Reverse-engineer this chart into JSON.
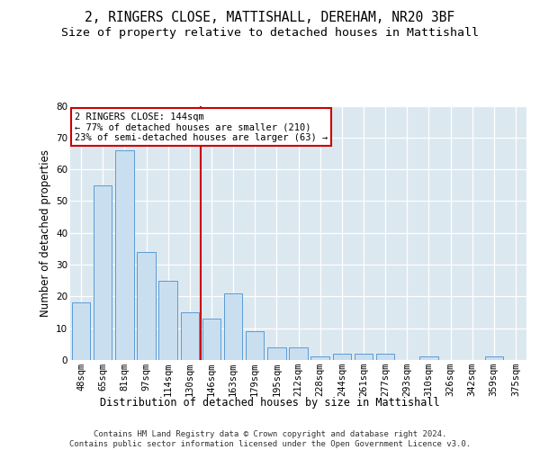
{
  "title": "2, RINGERS CLOSE, MATTISHALL, DEREHAM, NR20 3BF",
  "subtitle": "Size of property relative to detached houses in Mattishall",
  "xlabel": "Distribution of detached houses by size in Mattishall",
  "ylabel": "Number of detached properties",
  "categories": [
    "48sqm",
    "65sqm",
    "81sqm",
    "97sqm",
    "114sqm",
    "130sqm",
    "146sqm",
    "163sqm",
    "179sqm",
    "195sqm",
    "212sqm",
    "228sqm",
    "244sqm",
    "261sqm",
    "277sqm",
    "293sqm",
    "310sqm",
    "326sqm",
    "342sqm",
    "359sqm",
    "375sqm"
  ],
  "values": [
    18,
    55,
    66,
    34,
    25,
    15,
    13,
    21,
    9,
    4,
    4,
    1,
    2,
    2,
    2,
    0,
    1,
    0,
    0,
    1,
    0
  ],
  "bar_color": "#c9dff0",
  "bar_edge_color": "#5b9bd5",
  "vline_color": "#cc0000",
  "vline_x": 5.5,
  "annotation_line1": "2 RINGERS CLOSE: 144sqm",
  "annotation_line2": "← 77% of detached houses are smaller (210)",
  "annotation_line3": "23% of semi-detached houses are larger (63) →",
  "annotation_box_edge_color": "#cc0000",
  "ylim": [
    0,
    80
  ],
  "yticks": [
    0,
    10,
    20,
    30,
    40,
    50,
    60,
    70,
    80
  ],
  "bg_color": "#dce8f0",
  "title_fontsize": 10.5,
  "subtitle_fontsize": 9.5,
  "ylabel_fontsize": 8.5,
  "xlabel_fontsize": 8.5,
  "tick_fontsize": 7.5,
  "ann_fontsize": 7.5,
  "footer_line1": "Contains HM Land Registry data © Crown copyright and database right 2024.",
  "footer_line2": "Contains public sector information licensed under the Open Government Licence v3.0.",
  "footer_fontsize": 6.5
}
